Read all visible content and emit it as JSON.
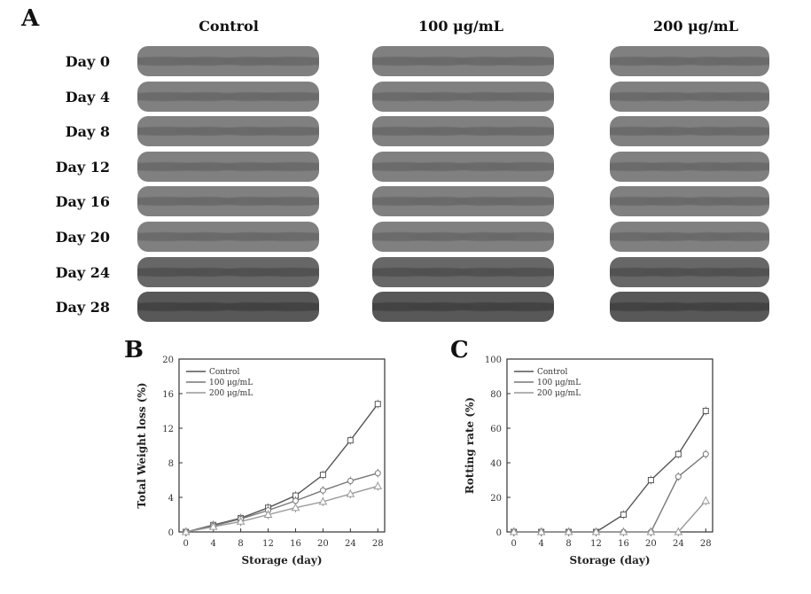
{
  "panel_a": {
    "letter": "A",
    "columns": [
      "Control",
      "100 μg/mL",
      "200 μg/mL"
    ],
    "rows": [
      "Day 0",
      "Day 4",
      "Day 8",
      "Day 12",
      "Day 16",
      "Day 20",
      "Day 24",
      "Day 28"
    ]
  },
  "panel_b": {
    "letter": "B"
  },
  "panel_c": {
    "letter": "C"
  },
  "chart_data": [
    {
      "type": "line",
      "xlabel": "Storage (day)",
      "ylabel": "Total Weight loss (%)",
      "x": [
        0,
        4,
        8,
        12,
        16,
        20,
        24,
        28
      ],
      "xlim": [
        -1,
        29
      ],
      "ylim": [
        0,
        20
      ],
      "yticks": [
        0,
        4,
        8,
        12,
        16,
        20
      ],
      "xticks": [
        0,
        4,
        8,
        12,
        16,
        20,
        24,
        28
      ],
      "legend_position": "top-left",
      "series": [
        {
          "name": "Control",
          "values": [
            0,
            0.8,
            1.6,
            2.8,
            4.2,
            6.6,
            10.6,
            14.8
          ]
        },
        {
          "name": "100 μg/mL",
          "values": [
            0,
            0.7,
            1.5,
            2.5,
            3.6,
            4.8,
            5.9,
            6.8
          ]
        },
        {
          "name": "200 μg/mL",
          "values": [
            0,
            0.6,
            1.2,
            2.0,
            2.8,
            3.5,
            4.4,
            5.3
          ]
        }
      ]
    },
    {
      "type": "line",
      "xlabel": "Storage (day)",
      "ylabel": "Rotting rate (%)",
      "x": [
        0,
        4,
        8,
        12,
        16,
        20,
        24,
        28
      ],
      "xlim": [
        -1,
        29
      ],
      "ylim": [
        0,
        100
      ],
      "yticks": [
        0,
        20,
        40,
        60,
        80,
        100
      ],
      "xticks": [
        0,
        4,
        8,
        12,
        16,
        20,
        24,
        28
      ],
      "legend_position": "top-left",
      "series": [
        {
          "name": "Control",
          "values": [
            0,
            0,
            0,
            0,
            10,
            30,
            45,
            70
          ]
        },
        {
          "name": "100 μg/mL",
          "values": [
            0,
            0,
            0,
            0,
            0,
            0,
            32,
            45
          ]
        },
        {
          "name": "200 μg/mL",
          "values": [
            0,
            0,
            0,
            0,
            0,
            0,
            0,
            18
          ]
        }
      ]
    }
  ]
}
